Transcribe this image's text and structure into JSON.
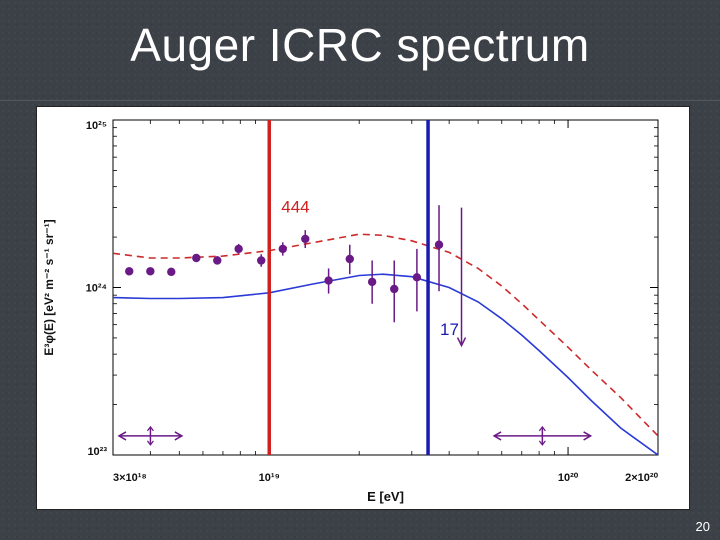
{
  "slide": {
    "title": "Auger ICRC spectrum",
    "page_number": "20"
  },
  "chart_data": {
    "type": "scatter",
    "title": "",
    "xlabel": "E [eV]",
    "ylabel": "E³φ(E) [eV² m⁻² s⁻¹ sr⁻¹]",
    "x_scale": "log",
    "y_scale": "log",
    "xlim": [
      3e+18,
      2e+20
    ],
    "ylim": [
      1e+23,
      1e+25
    ],
    "x_ticks": [
      {
        "value": 3e+18,
        "label": "3×10¹⁸"
      },
      {
        "value": 1e+19,
        "label": "10¹⁹"
      },
      {
        "value": 1e+20,
        "label": "10²⁰"
      },
      {
        "value": 2e+20,
        "label": "2×10²⁰"
      }
    ],
    "y_ticks": [
      {
        "value": 1e+23,
        "label": "10²³"
      },
      {
        "value": 1e+24,
        "label": "10²⁴"
      },
      {
        "value": 1e+25,
        "label": "10²⁵"
      }
    ],
    "grid": false,
    "series": [
      {
        "kind": "points",
        "color": "#6a1a86",
        "points": [
          {
            "x": 3.4e+18,
            "y": 1.25e+24,
            "yerr": [
              1.2e+24,
              1.3e+24
            ]
          },
          {
            "x": 4e+18,
            "y": 1.25e+24,
            "yerr": [
              1.2e+24,
              1.3e+24
            ]
          },
          {
            "x": 4.7e+18,
            "y": 1.24e+24,
            "yerr": [
              1.19e+24,
              1.29e+24
            ]
          },
          {
            "x": 5.7e+18,
            "y": 1.5e+24,
            "yerr": [
              1.42e+24,
              1.58e+24
            ]
          },
          {
            "x": 6.7e+18,
            "y": 1.45e+24,
            "yerr": [
              1.37e+24,
              1.54e+24
            ]
          },
          {
            "x": 7.9e+18,
            "y": 1.7e+24,
            "yerr": [
              1.59e+24,
              1.82e+24
            ]
          },
          {
            "x": 9.4e+18,
            "y": 1.45e+24,
            "yerr": [
              1.33e+24,
              1.58e+24
            ]
          },
          {
            "x": 1.11e+19,
            "y": 1.7e+24,
            "yerr": [
              1.55e+24,
              1.86e+24
            ]
          },
          {
            "x": 1.32e+19,
            "y": 1.95e+24,
            "yerr": [
              1.72e+24,
              2.2e+24
            ]
          },
          {
            "x": 1.58e+19,
            "y": 1.1e+24,
            "yerr": [
              9.2e+23,
              1.3e+24
            ]
          },
          {
            "x": 1.86e+19,
            "y": 1.48e+24,
            "yerr": [
              1.2e+24,
              1.8e+24
            ]
          },
          {
            "x": 2.21e+19,
            "y": 1.08e+24,
            "yerr": [
              8e+23,
              1.45e+24
            ]
          },
          {
            "x": 2.62e+19,
            "y": 9.8e+23,
            "yerr": [
              6.2e+23,
              1.45e+24
            ]
          },
          {
            "x": 3.12e+19,
            "y": 1.15e+24,
            "yerr": [
              7.2e+23,
              1.7e+24
            ]
          },
          {
            "x": 3.7e+19,
            "y": 1.8e+24,
            "yerr": [
              9.5e+23,
              3.1e+24
            ]
          }
        ],
        "upper_limit": {
          "x": 4.4e+19,
          "y": 4.5e+23,
          "top": 3e+24
        }
      },
      {
        "kind": "line",
        "style": "dashed",
        "color": "#cc2a2a",
        "x": [
          3e+18,
          4e+18,
          5e+18,
          7e+18,
          1e+19,
          1.4e+19,
          2e+19,
          2.4e+19,
          3e+19,
          4e+19,
          5e+19,
          6e+19,
          7e+19,
          8e+19,
          1e+20,
          1.2e+20,
          1.5e+20,
          2e+20
        ],
        "y": [
          1.6e+24,
          1.5e+24,
          1.5e+24,
          1.54e+24,
          1.66e+24,
          1.85e+24,
          2.08e+24,
          2.05e+24,
          1.9e+24,
          1.62e+24,
          1.3e+24,
          1.02e+24,
          8e+23,
          6.4e+23,
          4.4e+23,
          3.2e+23,
          2.2e+23,
          1.3e+23
        ]
      },
      {
        "kind": "line",
        "style": "solid",
        "color": "#2a3ad6",
        "x": [
          3e+18,
          4e+18,
          5e+18,
          7e+18,
          1e+19,
          1.4e+19,
          2e+19,
          2.4e+19,
          3e+19,
          4e+19,
          5e+19,
          6e+19,
          7e+19,
          8e+19,
          1e+20,
          1.2e+20,
          1.5e+20,
          2e+20
        ],
        "y": [
          8.7e+23,
          8.6e+23,
          8.6e+23,
          8.7e+23,
          9.3e+23,
          1.05e+24,
          1.18e+24,
          1.2e+24,
          1.16e+24,
          1e+24,
          8.2e+23,
          6.5e+23,
          5.2e+23,
          4.2e+23,
          2.9e+23,
          2.1e+23,
          1.45e+23,
          1e+23
        ]
      }
    ],
    "vlines": [
      {
        "x": 1e+19,
        "color": "#d02020",
        "label": "444",
        "label_y": 2.8e+24
      },
      {
        "x": 3.4e+19,
        "color": "#1a1ab0",
        "label": "17",
        "label_y": 5.2e+23
      }
    ],
    "horizontal_arrows": [
      {
        "x1": 3e+18,
        "x2": 5.1e+18,
        "y": 1.3e+23
      },
      {
        "x1": 5.4e+19,
        "x2": 1.19e+20,
        "y": 1.3e+23
      }
    ]
  }
}
